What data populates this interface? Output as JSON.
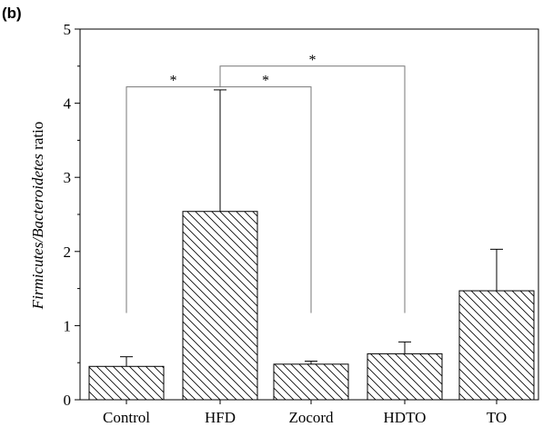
{
  "panel_label": "(b)",
  "chart_data": {
    "type": "bar",
    "categories": [
      "Control",
      "HFD",
      "Zocord",
      "HDTO",
      "TO"
    ],
    "values": [
      0.45,
      2.54,
      0.48,
      0.62,
      1.47
    ],
    "error_upper": [
      0.58,
      4.18,
      0.52,
      0.78,
      2.03
    ],
    "ylabel": {
      "part1": "Firmicutes",
      "sep": "/",
      "part2": "Bacteroidetes",
      "part3": " ratio"
    },
    "ylim": [
      0,
      5
    ],
    "yticks": [
      "0",
      "1",
      "2",
      "3",
      "4",
      "5"
    ],
    "bar_fill": "hatched",
    "significance": [
      {
        "from": "Control",
        "to": "HFD",
        "label": "*",
        "level": 4.22
      },
      {
        "from": "HFD",
        "to": "Zocord",
        "label": "*",
        "level": 4.22
      },
      {
        "from": "HFD",
        "to": "HDTO",
        "label": "*",
        "level": 4.5
      }
    ]
  }
}
